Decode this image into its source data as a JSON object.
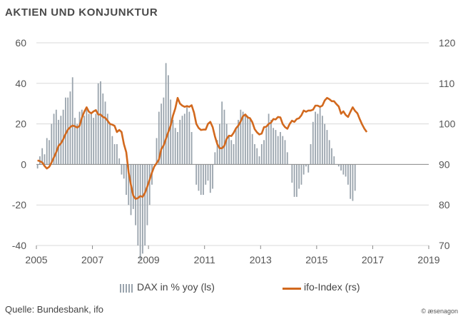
{
  "title": "AKTIEN UND KONJUNKTUR",
  "source": "Quelle: Bundesbank, ifo",
  "copyright": "© æsenagon",
  "legend": {
    "dax": "DAX in % yoy (ls)",
    "ifo": "ifo-Index (rs)"
  },
  "colors": {
    "bars": "#9aa4ad",
    "line": "#d2691e",
    "grid": "#d9d9d9",
    "text": "#555555"
  },
  "chart_data": {
    "type": "bar+line",
    "title": "AKTIEN UND KONJUNKTUR",
    "x_start": 2005.0,
    "x_step": 0.0833,
    "xlim": [
      2005,
      2019
    ],
    "x_ticks": [
      "2005",
      "2007",
      "2009",
      "2011",
      "2013",
      "2015",
      "2017",
      "2019"
    ],
    "left_axis": {
      "label": "DAX in % yoy (ls)",
      "ylim": [
        -40,
        60
      ],
      "ticks": [
        "60",
        "40",
        "20",
        "0",
        "-20",
        "-40"
      ]
    },
    "right_axis": {
      "label": "ifo-Index (rs)",
      "ylim": [
        70,
        120
      ],
      "ticks": [
        "120",
        "110",
        "100",
        "90",
        "80",
        "70"
      ]
    },
    "series": [
      {
        "name": "DAX in % yoy (ls)",
        "type": "bar",
        "axis": "left",
        "values": [
          -2,
          4,
          8,
          5,
          13,
          12,
          20,
          25,
          27,
          22,
          24,
          27,
          33,
          33,
          36,
          43,
          23,
          20,
          26,
          27,
          24,
          27,
          25,
          25,
          23,
          25,
          40,
          41,
          35,
          31,
          25,
          20,
          14,
          10,
          10,
          3,
          -5,
          -7,
          -15,
          -20,
          -25,
          -22,
          -30,
          -40,
          -47,
          -44,
          -40,
          -30,
          -20,
          -10,
          0,
          13,
          26,
          30,
          33,
          50,
          44,
          32,
          22,
          18,
          16,
          22,
          24,
          25,
          28,
          26,
          16,
          0,
          -10,
          -13,
          -15,
          -15,
          -10,
          -8,
          -14,
          -12,
          6,
          12,
          20,
          31,
          27,
          20,
          14,
          12,
          10,
          18,
          22,
          27,
          26,
          25,
          24,
          23,
          15,
          10,
          8,
          4,
          10,
          12,
          18,
          25,
          22,
          18,
          17,
          14,
          16,
          14,
          12,
          6,
          0,
          -9,
          -16,
          -16,
          -12,
          -10,
          -5,
          -1,
          -4,
          10,
          21,
          26,
          25,
          28,
          24,
          20,
          17,
          12,
          8,
          4,
          0,
          -1,
          -3,
          -5,
          -6,
          -10,
          -17,
          -18,
          -13
        ],
        "color": "#9aa4ad"
      },
      {
        "name": "ifo-Index (rs)",
        "type": "line",
        "axis": "right",
        "values": [
          91.0,
          90.8,
          90.5,
          89.6,
          89.0,
          89.4,
          90.5,
          91.7,
          93.0,
          94.6,
          95.2,
          96.2,
          97.5,
          98.6,
          99.2,
          99.6,
          99.4,
          99.1,
          99.5,
          101.5,
          103.0,
          104.1,
          103.0,
          102.6,
          103.1,
          103.4,
          102.3,
          102.3,
          101.7,
          101.5,
          100.8,
          100.0,
          99.8,
          99.5,
          98.0,
          98.5,
          98.0,
          95.0,
          93.0,
          88.0,
          85.0,
          82.3,
          81.5,
          81.7,
          82.2,
          82.0,
          83.0,
          84.5,
          86.2,
          88.0,
          89.5,
          90.3,
          91.2,
          93.8,
          94.7,
          96.3,
          98.0,
          99.6,
          102.0,
          103.8,
          106.4,
          105.0,
          104.5,
          104.2,
          104.4,
          104.2,
          104.6,
          102.8,
          100.0,
          99.0,
          98.5,
          98.6,
          98.6,
          100.0,
          100.5,
          99.2,
          96.9,
          95.0,
          94.0,
          94.0,
          94.6,
          96.3,
          97.1,
          97.0,
          97.8,
          98.9,
          99.6,
          100.6,
          101.9,
          102.3,
          101.6,
          101.4,
          100.4,
          98.7,
          97.9,
          97.4,
          97.6,
          99.2,
          99.3,
          100.0,
          100.3,
          101.2,
          101.1,
          101.7,
          101.6,
          100.0,
          99.2,
          98.8,
          100.0,
          100.8,
          100.5,
          101.2,
          101.4,
          102.1,
          103.3,
          103.0,
          103.3,
          103.3,
          103.5,
          104.5,
          104.5,
          104.2,
          104.5,
          105.8,
          106.4,
          106.1,
          105.6,
          105.6,
          104.9,
          104.3,
          102.5,
          103.1,
          102.2,
          101.7,
          103.0,
          104.1,
          103.2,
          102.6,
          101.2,
          99.9,
          98.8,
          98.0
        ],
        "color": "#d2691e"
      }
    ]
  }
}
